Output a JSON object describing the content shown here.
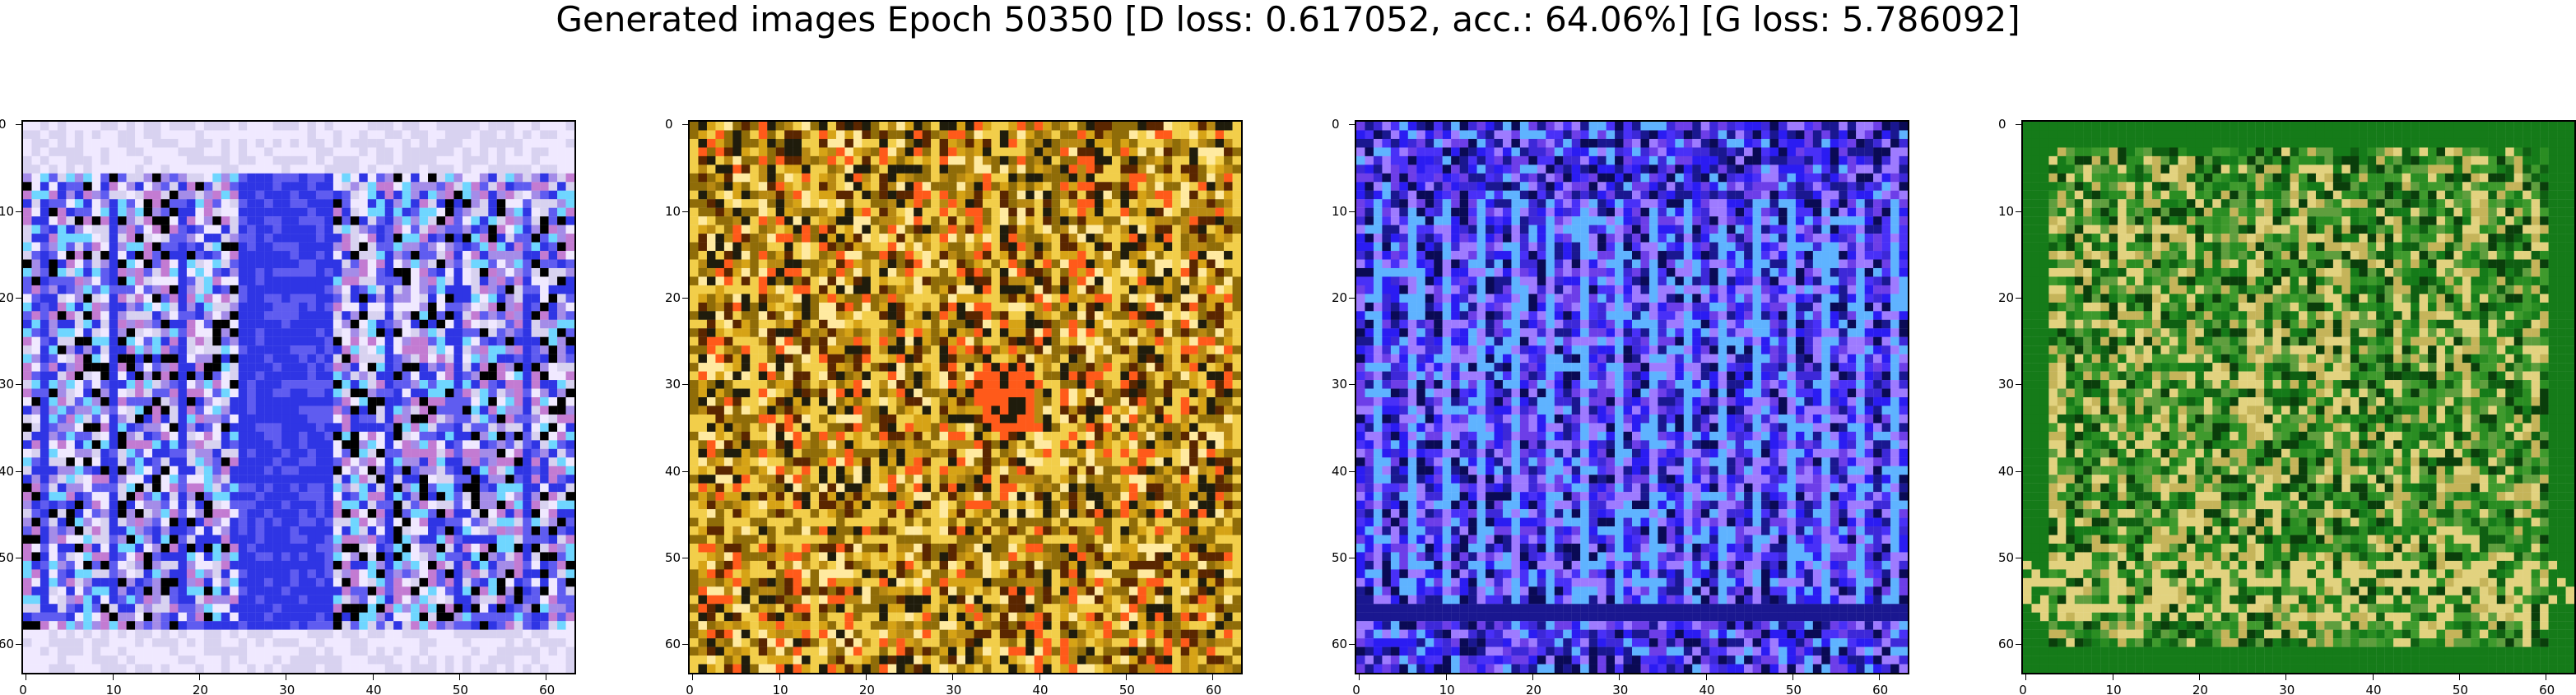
{
  "title": "Generated images Epoch 50350 [D loss: 0.617052, acc.: 64.06%] [G loss: 5.786092]",
  "chart_data": [
    {
      "type": "heatmap",
      "xlim": [
        -0.5,
        63.5
      ],
      "ylim": [
        63.5,
        -0.5
      ],
      "xticks": [
        "0",
        "10",
        "20",
        "30",
        "40",
        "50",
        "60"
      ],
      "yticks": [
        "0",
        "10",
        "20",
        "30",
        "40",
        "50",
        "60"
      ],
      "palette": [
        "#5f5cf0",
        "#2f35e4",
        "#d8d2f0",
        "#f0e9ff",
        "#a48ce8",
        "#6fd6ff",
        "#000000",
        "#c37bd2"
      ]
    },
    {
      "type": "heatmap",
      "xlim": [
        -0.5,
        63.5
      ],
      "ylim": [
        63.5,
        -0.5
      ],
      "xticks": [
        "0",
        "10",
        "20",
        "30",
        "40",
        "50",
        "60"
      ],
      "yticks": [
        "0",
        "10",
        "20",
        "30",
        "40",
        "50",
        "60"
      ],
      "palette": [
        "#b88912",
        "#8f6c08",
        "#d6a316",
        "#f2ce4a",
        "#ff5a1a",
        "#5a2600",
        "#ffeaa0",
        "#1f1c0c"
      ]
    },
    {
      "type": "heatmap",
      "xlim": [
        -0.5,
        63.5
      ],
      "ylim": [
        63.5,
        -0.5
      ],
      "xticks": [
        "0",
        "10",
        "20",
        "30",
        "40",
        "50",
        "60"
      ],
      "yticks": [
        "0",
        "10",
        "20",
        "30",
        "40",
        "50",
        "60"
      ],
      "palette": [
        "#2b1cf2",
        "#4930f7",
        "#3d28d8",
        "#5fb3ff",
        "#1a1790",
        "#6d3ee8",
        "#9e7bff",
        "#0a0a55"
      ]
    },
    {
      "type": "heatmap",
      "xlim": [
        -0.5,
        63.5
      ],
      "ylim": [
        63.5,
        -0.5
      ],
      "xticks": [
        "0",
        "10",
        "20",
        "30",
        "40",
        "50",
        "60"
      ],
      "yticks": [
        "0",
        "10",
        "20",
        "30",
        "40",
        "50",
        "60"
      ],
      "palette": [
        "#157b19",
        "#0f5f12",
        "#2a8d22",
        "#3f9a2d",
        "#c5b45a",
        "#e2d27f",
        "#0a3e0b",
        "#5f9e3e"
      ]
    }
  ]
}
